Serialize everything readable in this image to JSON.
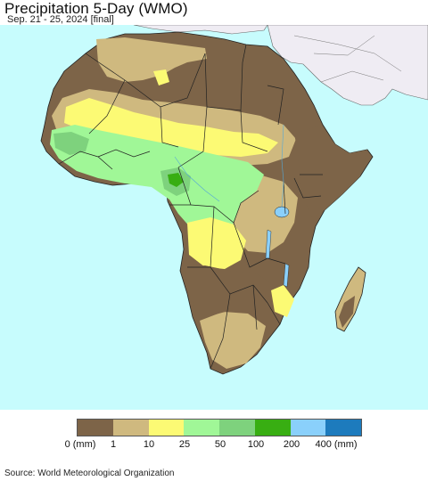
{
  "header": {
    "title": "Precipitation 5-Day (WMO)",
    "subtitle": "Sep. 21 - 25, 2024 [final]"
  },
  "legend": {
    "colors": [
      "#7d6448",
      "#cfb97f",
      "#fcfa74",
      "#a0f797",
      "#7ed27d",
      "#38ae12",
      "#8ad0fb",
      "#1d7bbd"
    ],
    "tick_labels": [
      "0 (mm)",
      "1",
      "10",
      "25",
      "50",
      "100",
      "200",
      "400 (mm)"
    ]
  },
  "map": {
    "ocean_color": "#c7fcfd",
    "land_outside_color": "#efecf3",
    "dry_color": "#7d6448"
  },
  "footer": {
    "source": "Source: World Meteorological Organization"
  }
}
